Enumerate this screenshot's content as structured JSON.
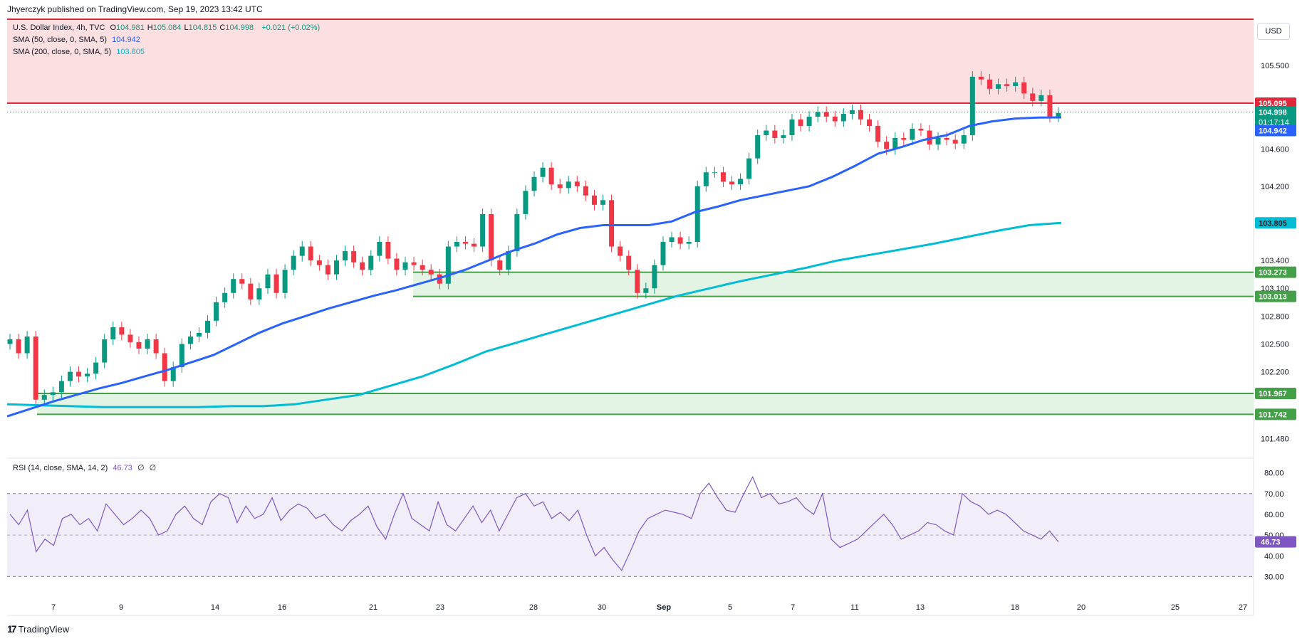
{
  "header": {
    "publisher": "Jhyerczyk published on TradingView.com, Sep 19, 2023 13:42 UTC"
  },
  "legend": {
    "title": "U.S. Dollar Index, 4h, TVC",
    "ohlc": [
      {
        "k": "O",
        "v": "104.981"
      },
      {
        "k": "H",
        "v": "105.084"
      },
      {
        "k": "L",
        "v": "104.815"
      },
      {
        "k": "C",
        "v": "104.998"
      }
    ],
    "change": "+0.021 (+0.02%)",
    "sma50": {
      "label": "SMA (50, close, 0, SMA, 5)",
      "value": "104.942",
      "color": "#2962ff"
    },
    "sma200": {
      "label": "SMA (200, close, 0, SMA, 5)",
      "value": "103.805",
      "color": "#00bcd4"
    },
    "rsi": {
      "label": "RSI (14, close, SMA, 14, 2)",
      "value": "46.73",
      "extra1": "∅",
      "extra2": "∅",
      "color": "#7e57c2"
    }
  },
  "currency": "USD",
  "footer": {
    "brand": "TradingView"
  },
  "chart_data": {
    "type": "candlestick",
    "title": "U.S. Dollar Index, 4h, TVC",
    "ylim": [
      101.3,
      106.0
    ],
    "y_ticks": [
      "105.500",
      "104.600",
      "104.200",
      "103.400",
      "103.100",
      "102.800",
      "102.500",
      "102.200",
      "101.480"
    ],
    "x_ticks": [
      "7",
      "9",
      "14",
      "16",
      "21",
      "23",
      "28",
      "30",
      "Sep",
      "5",
      "7",
      "11",
      "13",
      "18",
      "20",
      "25",
      "27"
    ],
    "resistance_zone": {
      "from": 105.095,
      "to": 106.0,
      "label": "105.095"
    },
    "support_zones": [
      {
        "from": 103.013,
        "to": 103.273,
        "labels": [
          "103.273",
          "103.013"
        ]
      },
      {
        "from": 101.742,
        "to": 101.967,
        "labels": [
          "101.967",
          "101.742"
        ]
      }
    ],
    "price_labels": {
      "last": "104.998",
      "countdown": "01:17:14",
      "sma50": "104.942",
      "sma200": "103.805"
    },
    "close_series": [
      102.55,
      102.4,
      102.58,
      101.9,
      101.95,
      101.98,
      102.1,
      102.2,
      102.15,
      102.18,
      102.3,
      102.55,
      102.68,
      102.6,
      102.52,
      102.45,
      102.55,
      102.4,
      102.1,
      102.25,
      102.5,
      102.58,
      102.62,
      102.75,
      102.95,
      103.05,
      103.2,
      103.15,
      102.98,
      103.1,
      103.25,
      103.05,
      103.3,
      103.45,
      103.55,
      103.4,
      103.35,
      103.25,
      103.4,
      103.5,
      103.38,
      103.3,
      103.45,
      103.6,
      103.42,
      103.3,
      103.38,
      103.35,
      103.3,
      103.25,
      103.15,
      103.55,
      103.6,
      103.58,
      103.55,
      103.9,
      103.4,
      103.3,
      103.5,
      103.9,
      104.15,
      104.3,
      104.4,
      104.22,
      104.18,
      104.25,
      104.2,
      104.1,
      104.0,
      104.05,
      103.55,
      103.45,
      103.3,
      103.05,
      103.1,
      103.35,
      103.6,
      103.65,
      103.58,
      103.6,
      104.2,
      104.35,
      104.35,
      104.25,
      104.22,
      104.28,
      104.5,
      104.75,
      104.8,
      104.72,
      104.75,
      104.92,
      104.85,
      104.95,
      105.0,
      104.95,
      104.9,
      104.98,
      105.02,
      104.92,
      104.85,
      104.68,
      104.6,
      104.72,
      104.7,
      104.82,
      104.8,
      104.65,
      104.72,
      104.7,
      104.66,
      104.75,
      105.38,
      105.35,
      105.25,
      105.3,
      105.28,
      105.32,
      105.2,
      105.12,
      105.18,
      104.95,
      104.99
    ],
    "sma50_series": [
      101.72,
      101.8,
      101.88,
      101.95,
      102.02,
      102.08,
      102.15,
      102.22,
      102.3,
      102.38,
      102.5,
      102.62,
      102.72,
      102.8,
      102.88,
      102.95,
      103.02,
      103.08,
      103.15,
      103.22,
      103.3,
      103.4,
      103.5,
      103.58,
      103.68,
      103.75,
      103.78,
      103.78,
      103.78,
      103.82,
      103.92,
      103.98,
      104.05,
      104.1,
      104.15,
      104.2,
      104.3,
      104.42,
      104.55,
      104.62,
      104.7,
      104.75,
      104.85,
      104.9,
      104.93,
      104.94,
      104.942
    ],
    "sma200_series": [
      101.85,
      101.84,
      101.83,
      101.82,
      101.82,
      101.82,
      101.82,
      101.83,
      101.83,
      101.85,
      101.9,
      101.95,
      102.05,
      102.15,
      102.28,
      102.42,
      102.52,
      102.62,
      102.72,
      102.82,
      102.92,
      103.02,
      103.1,
      103.18,
      103.25,
      103.32,
      103.4,
      103.46,
      103.52,
      103.58,
      103.65,
      103.72,
      103.78,
      103.805
    ],
    "rsi": {
      "ylim": [
        25,
        85
      ],
      "y_ticks": [
        "80.00",
        "70.00",
        "60.00",
        "50.00",
        "40.00",
        "30.00"
      ],
      "bands": [
        70,
        30
      ],
      "midline": 50,
      "last": "46.73",
      "series": [
        60,
        55,
        62,
        42,
        48,
        45,
        58,
        60,
        55,
        58,
        52,
        65,
        60,
        55,
        58,
        62,
        58,
        50,
        52,
        60,
        64,
        58,
        55,
        66,
        70,
        68,
        56,
        64,
        58,
        60,
        68,
        57,
        62,
        65,
        63,
        58,
        60,
        55,
        52,
        57,
        60,
        64,
        54,
        48,
        60,
        70,
        58,
        55,
        52,
        66,
        55,
        52,
        58,
        64,
        56,
        62,
        52,
        60,
        68,
        70,
        64,
        66,
        58,
        61,
        57,
        62,
        50,
        40,
        44,
        38,
        33,
        42,
        52,
        58,
        60,
        62,
        61,
        60,
        58,
        70,
        75,
        68,
        62,
        61,
        70,
        78,
        68,
        70,
        65,
        66,
        68,
        63,
        60,
        70,
        48,
        44,
        46,
        48,
        52,
        56,
        60,
        55,
        48,
        50,
        52,
        56,
        55,
        52,
        50,
        70,
        66,
        64,
        60,
        62,
        60,
        56,
        52,
        50,
        48,
        52,
        46.73
      ]
    }
  }
}
